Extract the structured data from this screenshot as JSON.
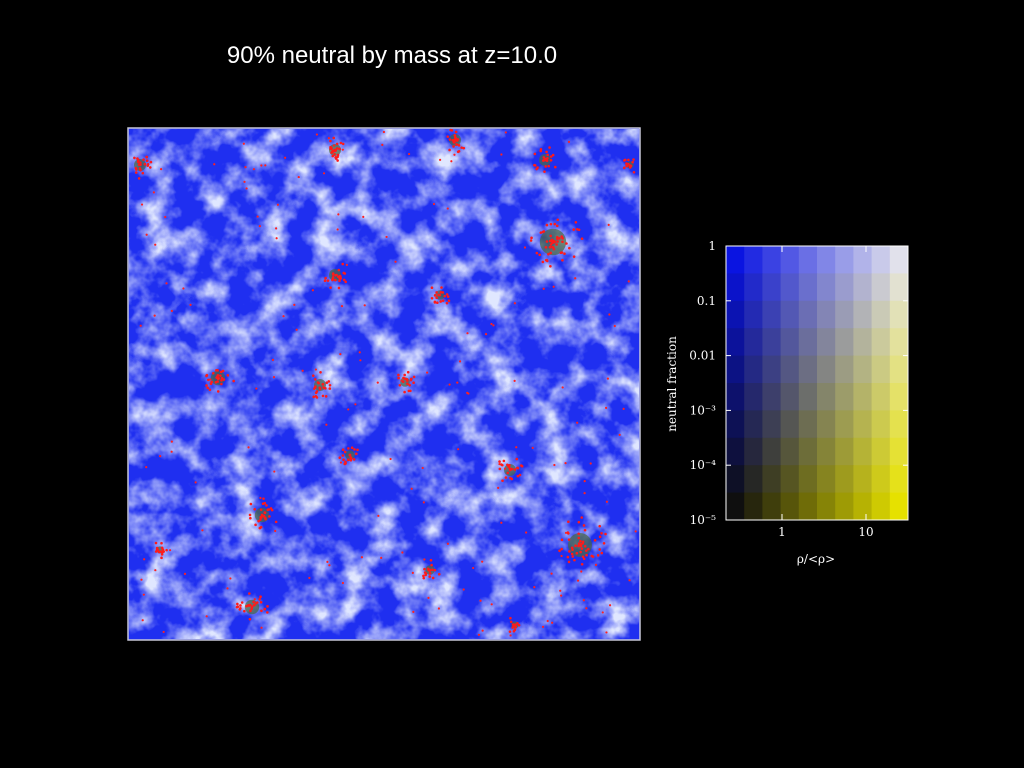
{
  "title": "90% neutral by mass at z=10.0",
  "legend": {
    "y_label": "neutral fraction",
    "y_ticks": [
      "1",
      "0.1",
      "0.01",
      "10⁻³",
      "10⁻⁴",
      "10⁻⁵"
    ],
    "x_label": "ρ/<ρ>",
    "x_ticks": [
      "1",
      "10"
    ]
  }
}
